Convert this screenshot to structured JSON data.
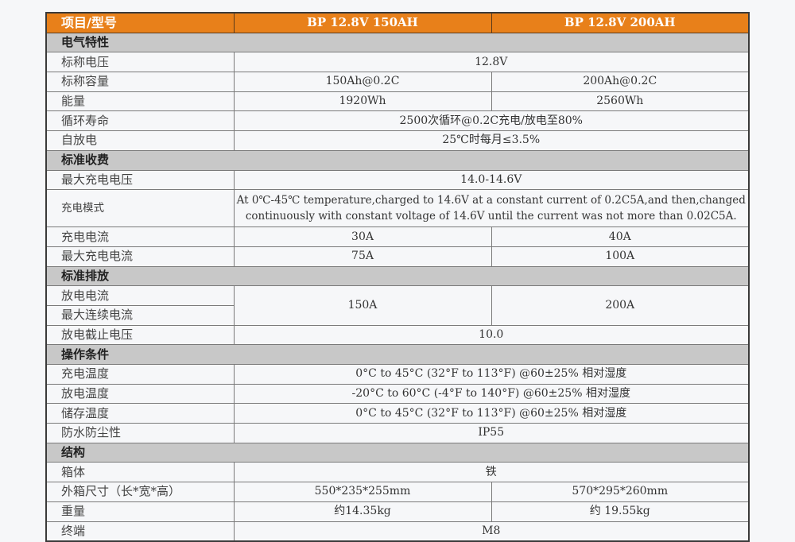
{
  "colors": {
    "header": "#e8801a",
    "section": "#c8c8c8",
    "background": "#f6f7f9"
  },
  "header": {
    "label": "项目/型号",
    "models": [
      "BP  12.8V 150AH",
      "BP  12.8V 200AH"
    ]
  },
  "rows": [
    {
      "type": "section",
      "label": "电气特性"
    },
    {
      "label": "标称电压",
      "values": [
        "12.8V"
      ]
    },
    {
      "label": "标称容量",
      "values": [
        "150Ah@0.2C",
        "200Ah@0.2C"
      ]
    },
    {
      "label": "能量",
      "values": [
        "1920Wh",
        "2560Wh"
      ]
    },
    {
      "label": "循环寿命",
      "values": [
        "2500次循环@0.2C充电/放电至80%"
      ]
    },
    {
      "label": "自放电",
      "values": [
        "25℃时每月≤3.5%"
      ]
    },
    {
      "type": "section",
      "label": "标准收费"
    },
    {
      "label": "最大充电电压",
      "values": [
        "14.0-14.6V"
      ]
    },
    {
      "label": "充电模式",
      "tall": true,
      "values": [
        "At 0℃-45℃ temperature,charged to 14.6V at a constant current of 0.2C5A,and then,changed continuously with constant voltage of 14.6V until the current was not more than 0.02C5A."
      ]
    },
    {
      "label": "充电电流",
      "values": [
        "30A",
        "40A"
      ]
    },
    {
      "label": "最大充电电流",
      "values": [
        "75A",
        "100A"
      ]
    },
    {
      "type": "section",
      "label": "标准排放"
    },
    {
      "type": "merged",
      "labels": [
        "放电电流",
        "最大连续电流"
      ],
      "values": [
        "150A",
        "200A"
      ]
    },
    {
      "label": "放电截止电压",
      "values": [
        "10.0"
      ]
    },
    {
      "type": "section",
      "label": "操作条件"
    },
    {
      "label": "充电温度",
      "values": [
        "0°C to 45°C (32°F to 113°F) @60±25% 相对湿度"
      ]
    },
    {
      "label": "放电温度",
      "values": [
        "-20°C to 60°C (-4°F to 140°F) @60±25% 相对湿度"
      ]
    },
    {
      "label": "储存温度",
      "values": [
        "0°C to 45°C (32°F to 113°F) @60±25% 相对湿度"
      ]
    },
    {
      "label": "防水防尘性",
      "values": [
        "IP55"
      ]
    },
    {
      "type": "section",
      "label": "结构"
    },
    {
      "label": "箱体",
      "values": [
        "铁"
      ]
    },
    {
      "label": "外箱尺寸（长*宽*高）",
      "values": [
        "550*235*255mm",
        "570*295*260mm"
      ]
    },
    {
      "label": "重量",
      "values": [
        "约14.35kg",
        "约 19.55kg"
      ]
    },
    {
      "label": "终端",
      "values": [
        "M8"
      ]
    }
  ]
}
